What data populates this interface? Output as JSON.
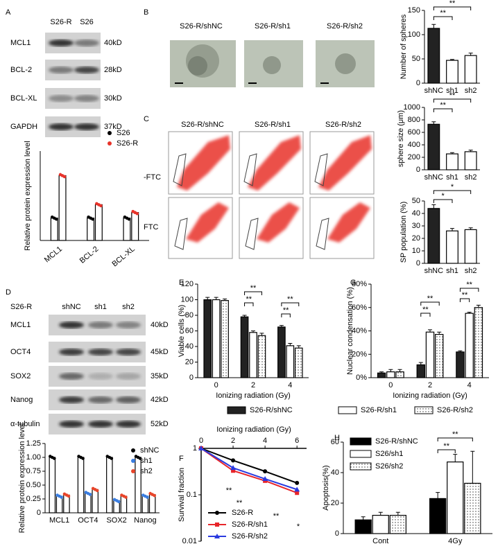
{
  "panels": {
    "A": {
      "letter": "A",
      "lanes": [
        "S26-R",
        "S26"
      ],
      "blots": [
        {
          "name": "MCL1",
          "size": "40kD"
        },
        {
          "name": "BCL-2",
          "size": "28kD"
        },
        {
          "name": "BCL-XL",
          "size": "30kD"
        },
        {
          "name": "GAPDH",
          "size": "37kD"
        }
      ]
    },
    "B": {
      "letter": "B",
      "titles": [
        "S26-R/shNC",
        "S26-R/sh1",
        "S26-R/sh2"
      ]
    },
    "C": {
      "letter": "C",
      "titles": [
        "S26-R/shNC",
        "S26-R/sh1",
        "S26-R/sh2"
      ],
      "rows": [
        "-FTC",
        "FTC"
      ]
    },
    "D": {
      "letter": "D",
      "group": "S26-R",
      "lanes": [
        "shNC",
        "sh1",
        "sh2"
      ],
      "blots": [
        {
          "name": "MCL1",
          "size": "40kD"
        },
        {
          "name": "OCT4",
          "size": "45kD"
        },
        {
          "name": "SOX2",
          "size": "35kD"
        },
        {
          "name": "Nanog",
          "size": "42kD"
        },
        {
          "name": "α-tubulin",
          "size": "52kD"
        }
      ]
    },
    "E": {
      "letter": "E"
    },
    "F": {
      "letter": "F"
    },
    "G": {
      "letter": "G"
    },
    "H": {
      "letter": "H"
    }
  },
  "chart_data": [
    {
      "type": "bar",
      "ylabel": "Relative protein expression level",
      "categories": [
        "MCL1",
        "BCL-2",
        "BCL-XL"
      ],
      "ylim": [
        0,
        4
      ],
      "series": [
        {
          "name": "S26",
          "color": "#000000",
          "values": [
            1,
            1,
            1
          ]
        },
        {
          "name": "S26-R",
          "color": "#e8332a",
          "values": [
            2.9,
            1.6,
            1.25
          ]
        }
      ]
    },
    {
      "type": "bar",
      "ylabel": "Number of spheres",
      "categories": [
        "shNC",
        "sh1",
        "sh2"
      ],
      "values": [
        113,
        47,
        57
      ],
      "errors": [
        8,
        2,
        5
      ],
      "colors": [
        "#222222",
        "#ffffff",
        "#ffffff"
      ],
      "ylim": [
        0,
        150
      ],
      "yticks": [
        0,
        50,
        100,
        150
      ],
      "annotations": [
        "**",
        "**"
      ]
    },
    {
      "type": "bar",
      "ylabel": "sphere size (μm)",
      "categories": [
        "shNC",
        "sh1",
        "sh2"
      ],
      "values": [
        730,
        255,
        290
      ],
      "errors": [
        40,
        20,
        25
      ],
      "colors": [
        "#222222",
        "#ffffff",
        "#ffffff"
      ],
      "ylim": [
        0,
        1000
      ],
      "yticks": [
        0,
        200,
        400,
        600,
        800,
        1000
      ],
      "annotations": [
        "**",
        "**"
      ]
    },
    {
      "type": "bar",
      "ylabel": "SP population (%)",
      "categories": [
        "shNC",
        "sh1",
        "sh2"
      ],
      "values": [
        44,
        26,
        27
      ],
      "errors": [
        3,
        2,
        1.5
      ],
      "colors": [
        "#222222",
        "#ffffff",
        "#ffffff"
      ],
      "ylim": [
        0,
        50
      ],
      "yticks": [
        0,
        10,
        20,
        30,
        40,
        50
      ],
      "annotations": [
        "*",
        "*"
      ]
    },
    {
      "type": "bar",
      "ylabel": "Relative protein expression level",
      "categories": [
        "MCL1",
        "OCT4",
        "SOX2",
        "Nanog"
      ],
      "ylim": [
        0,
        1.25
      ],
      "yticks": [
        0,
        0.25,
        {
          "value": 0.5,
          "label": "0.50"
        },
        0.75,
        {
          "value": 1,
          "label": "1.00"
        },
        1.25
      ],
      "series": [
        {
          "name": "shNC",
          "color": "#000000",
          "values": [
            1,
            1,
            1,
            1
          ]
        },
        {
          "name": "sh1",
          "color": "#3a7de0",
          "values": [
            0.3,
            0.35,
            0.22,
            0.3
          ]
        },
        {
          "name": "sh2",
          "color": "#e8452a",
          "values": [
            0.32,
            0.42,
            0.3,
            0.33
          ]
        }
      ]
    },
    {
      "type": "bar",
      "ylabel": "Viable cells (%)",
      "xlabel": "Ionizing radiation (Gy)",
      "categories": [
        "0",
        "2",
        "4"
      ],
      "ylim": [
        0,
        120
      ],
      "yticks": [
        0,
        20,
        40,
        60,
        80,
        100,
        120
      ],
      "series": [
        {
          "name": "S26-R/shNC",
          "color": "#222222",
          "values": [
            100,
            78,
            65
          ],
          "errors": [
            3,
            2,
            2
          ]
        },
        {
          "name": "S26-R/sh1",
          "color": "#ffffff",
          "values": [
            100,
            58,
            41
          ],
          "errors": [
            3,
            2,
            3
          ]
        },
        {
          "name": "S26-R/sh2",
          "color": "#ffffff",
          "pattern": "dots",
          "values": [
            99,
            54,
            38
          ],
          "errors": [
            2,
            3,
            3
          ]
        }
      ],
      "annotations": [
        "**",
        "**",
        "**",
        "**"
      ]
    },
    {
      "type": "bar",
      "ylabel": "Nuclear condensation (%)",
      "xlabel": "Ionizing radiation (Gy)",
      "categories": [
        "0",
        "2",
        "4"
      ],
      "ylim": [
        0,
        80
      ],
      "yticks": [
        {
          "value": 0,
          "label": "0%"
        },
        {
          "value": 20,
          "label": "20%"
        },
        {
          "value": 40,
          "label": "40%"
        },
        {
          "value": 60,
          "label": "60%"
        },
        {
          "value": 80,
          "label": "80%"
        }
      ],
      "series": [
        {
          "color": "#222222",
          "values": [
            4,
            11,
            22
          ],
          "errors": [
            1,
            2,
            1
          ]
        },
        {
          "color": "#ffffff",
          "values": [
            5,
            39,
            55
          ],
          "errors": [
            2,
            2,
            1
          ]
        },
        {
          "color": "#ffffff",
          "pattern": "dots",
          "values": [
            5,
            37,
            60
          ],
          "errors": [
            2,
            2,
            2
          ]
        }
      ],
      "annotations": [
        "**",
        "**",
        "**",
        "**"
      ]
    },
    {
      "type": "line",
      "ylabel": "Survival fraction",
      "xlabel": "Ionizing radiation (Gy)",
      "x": [
        0,
        2,
        4,
        6
      ],
      "xlim": [
        0,
        6.6
      ],
      "xticks": [
        0,
        2,
        4,
        6
      ],
      "ylim": [
        0.01,
        1
      ],
      "yticks": [
        0.01,
        0.1,
        1
      ],
      "log_y": true,
      "series": [
        {
          "name": "S26-R",
          "color": "#000000",
          "marker": "circle",
          "values": [
            1,
            0.55,
            0.32,
            0.18
          ]
        },
        {
          "name": "S26-R/sh1",
          "color": "#e8252a",
          "marker": "square",
          "values": [
            1,
            0.33,
            0.2,
            0.11
          ]
        },
        {
          "name": "S26-R/sh2",
          "color": "#2a3ae0",
          "marker": "triangle",
          "values": [
            1,
            0.38,
            0.22,
            0.13
          ]
        }
      ],
      "annotations": [
        "**",
        "**",
        "**",
        "*"
      ]
    },
    {
      "type": "bar",
      "ylabel": "Apoptosis(%)",
      "categories": [
        "Cont",
        "4Gy"
      ],
      "ylim": [
        0,
        60
      ],
      "yticks": [
        0,
        20,
        40,
        60
      ],
      "series": [
        {
          "name": "S26-R/shNC",
          "color": "#000000",
          "values": [
            9,
            23
          ],
          "errors": [
            2,
            4
          ]
        },
        {
          "name": "S26/sh1",
          "color": "#ffffff",
          "values": [
            12,
            47
          ],
          "errors": [
            2,
            5
          ]
        },
        {
          "name": "S26/sh2",
          "color": "#ffffff",
          "pattern": "dots",
          "values": [
            12,
            33
          ],
          "errors": [
            2,
            21
          ]
        }
      ],
      "annotations": [
        "**",
        "**"
      ]
    }
  ]
}
